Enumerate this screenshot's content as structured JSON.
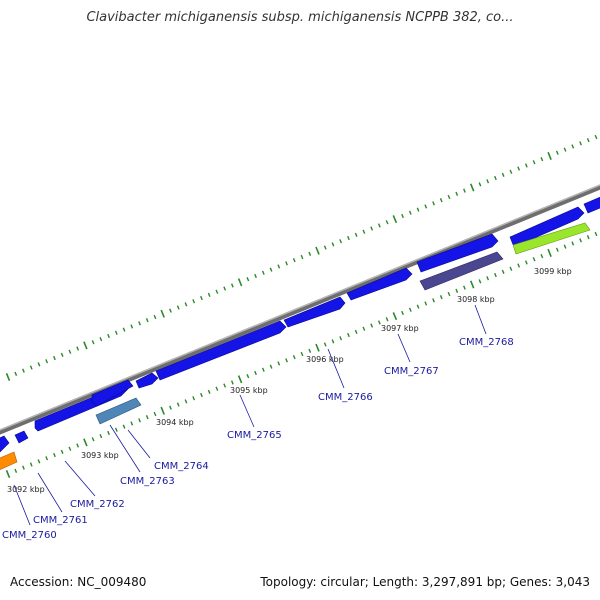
{
  "title": "Clavibacter michiganensis subsp. michiganensis NCPPB 382, co...",
  "footer": {
    "accession": "Accession: NC_009480",
    "summary": "Topology: circular; Length: 3,297,891 bp; Genes: 3,043"
  },
  "colors": {
    "backbone": "#8a8a8a",
    "gene_forward": "#1414e6",
    "tick": "#2a8a2a",
    "gene_label": "#1a1aa0",
    "orange": "#ff8c00",
    "steelblue": "#4f86b8",
    "slate": "#4b4690",
    "lime": "#9ae62a"
  },
  "kbp_ticks": [
    "3092 kbp",
    "3093 kbp",
    "3094 kbp",
    "3095 kbp",
    "3096 kbp",
    "3097 kbp",
    "3098 kbp",
    "3099 kbp"
  ],
  "genes": [
    "CMM_2760",
    "CMM_2761",
    "CMM_2762",
    "CMM_2763",
    "CMM_2764",
    "CMM_2765",
    "CMM_2766",
    "CMM_2767",
    "CMM_2768"
  ]
}
